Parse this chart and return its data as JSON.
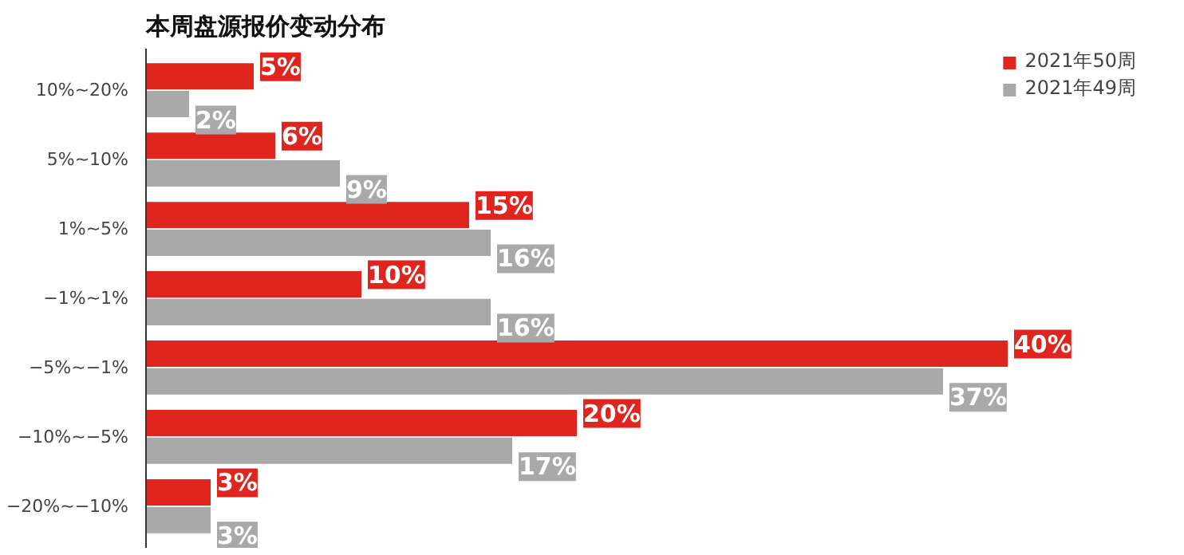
{
  "chart_data": {
    "type": "bar",
    "orientation": "horizontal",
    "title": "本周盘源报价变动分布",
    "categories": [
      "10%~20%",
      "5%~10%",
      "1%~5%",
      "−1%~1%",
      "−5%~−1%",
      "−10%~−5%",
      "−20%~−10%"
    ],
    "series": [
      {
        "name": "2021年50周",
        "color": "#e0251f",
        "values": [
          5,
          6,
          15,
          10,
          40,
          20,
          3
        ],
        "value_labels": [
          "5%",
          "6%",
          "15%",
          "10%",
          "40%",
          "20%",
          "3%"
        ]
      },
      {
        "name": "2021年49周",
        "color": "#a9a9a9",
        "values": [
          2,
          9,
          16,
          16,
          37,
          17,
          3
        ],
        "value_labels": [
          "2%",
          "9%",
          "16%",
          "16%",
          "37%",
          "17%",
          "3%"
        ]
      }
    ],
    "legend": "top right",
    "grid": false
  }
}
